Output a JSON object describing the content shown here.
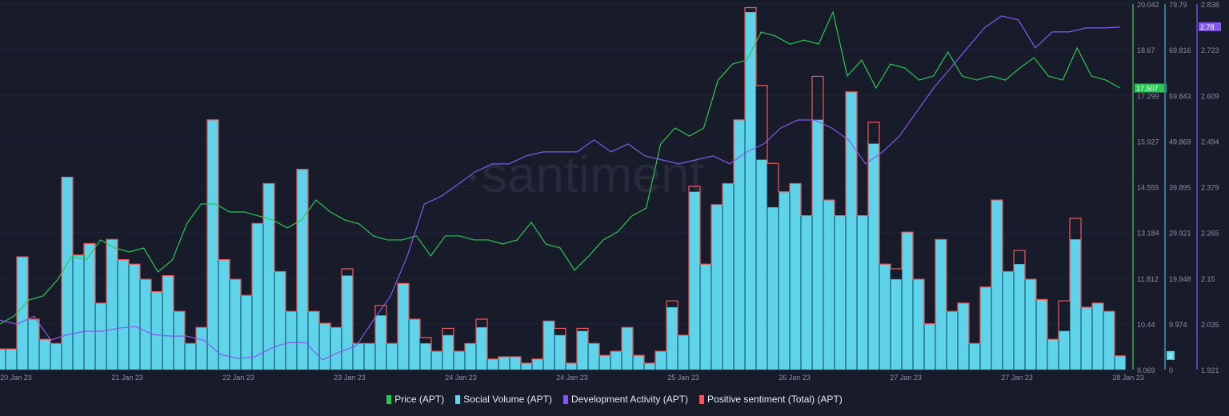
{
  "watermark": "·santiment",
  "chart_data": {
    "type": "line",
    "x_tick_labels": [
      "20 Jan 23",
      "21 Jan 23",
      "22 Jan 23",
      "23 Jan 23",
      "24 Jan 23",
      "24 Jan 23",
      "25 Jan 23",
      "26 Jan 23",
      "27 Jan 23",
      "27 Jan 23",
      "28 Jan 23"
    ],
    "grid": true,
    "legend_position": "bottom",
    "axes": {
      "price": {
        "ticks": [
          "20.042",
          "18.67",
          "17.299",
          "15.927",
          "14.555",
          "13.184",
          "11.812",
          "10.44",
          "9.069"
        ],
        "range": [
          9.069,
          20.042
        ],
        "badge": "17.507"
      },
      "social_volume": {
        "ticks": [
          "79.79",
          "69.816",
          "59.843",
          "49.869",
          "39.895",
          "29.921",
          "19.948",
          "9.974",
          "0"
        ],
        "range": [
          0,
          79.79
        ],
        "badge": "3"
      },
      "dev_activity": {
        "ticks": [
          "2.838",
          "2.723",
          "2.609",
          "2.494",
          "2.379",
          "2.265",
          "2.15",
          "2.035",
          "1.921"
        ],
        "range": [
          1.921,
          2.838
        ],
        "badge": "2.78"
      }
    },
    "series": [
      {
        "name": "Price (APT)",
        "color": "#26c953",
        "type": "line",
        "axis": "price",
        "values": [
          10.44,
          10.68,
          11.16,
          11.28,
          11.76,
          12.48,
          12.36,
          12.96,
          12.72,
          12.6,
          12.72,
          12.0,
          12.36,
          13.44,
          14.04,
          14.04,
          13.8,
          13.8,
          13.68,
          13.56,
          13.32,
          13.56,
          14.16,
          13.8,
          13.56,
          13.44,
          13.08,
          12.96,
          12.96,
          13.08,
          12.48,
          13.08,
          13.08,
          12.96,
          12.96,
          12.84,
          12.96,
          13.49,
          12.84,
          12.72,
          12.05,
          12.48,
          12.96,
          13.2,
          13.68,
          13.92,
          15.84,
          16.32,
          16.08,
          16.32,
          17.76,
          18.24,
          18.36,
          19.2,
          19.08,
          18.84,
          18.96,
          18.84,
          19.8,
          17.88,
          18.36,
          17.52,
          18.24,
          18.12,
          17.76,
          17.88,
          18.6,
          17.88,
          17.76,
          17.88,
          17.76,
          18.12,
          18.43,
          17.88,
          17.76,
          18.72,
          17.88,
          17.76,
          17.52
        ]
      },
      {
        "name": "Social Volume (APT)",
        "color": "#5fd3ea",
        "type": "bar",
        "axis": "social_volume",
        "values": [
          4.5,
          4.5,
          24.6,
          11,
          6.6,
          5.7,
          42,
          25,
          27.5,
          14.5,
          28.4,
          24,
          23,
          19.7,
          17,
          20.5,
          12.7,
          5.7,
          9.2,
          54.5,
          24,
          19.7,
          16.2,
          31.9,
          40.6,
          21.4,
          12.7,
          43.7,
          12.7,
          10.1,
          9.2,
          20.5,
          5.7,
          5.7,
          11.8,
          5.7,
          18.8,
          11,
          5.7,
          4,
          7.5,
          4,
          5.7,
          9.2,
          2.3,
          2.8,
          2.8,
          1.4,
          2.3,
          10.6,
          7.5,
          1.4,
          8.4,
          5.7,
          3.1,
          4,
          9.2,
          3.1,
          1.4,
          4,
          13.6,
          7.5,
          38.8,
          23,
          36,
          40.6,
          54.5,
          78,
          45.8,
          35.4,
          38.8,
          40.6,
          33.6,
          54.5,
          37,
          33.6,
          60.6,
          33.6,
          49.3,
          23,
          19.7,
          30,
          19.7,
          10,
          28.4,
          12.7,
          14.5,
          5.7,
          18,
          37,
          21.4,
          23,
          19.7,
          15.3,
          6.6,
          8.4,
          28.4,
          13.6,
          14.5,
          12.7,
          3
        ]
      },
      {
        "name": "Development Activity (APT)",
        "color": "#8159f0",
        "type": "line",
        "axis": "dev_activity",
        "values": [
          2.045,
          2.035,
          2.055,
          1.995,
          2.009,
          2.017,
          2.017,
          2.025,
          2.029,
          2.009,
          2.005,
          2.005,
          1.995,
          1.959,
          1.949,
          1.953,
          1.975,
          1.989,
          1.989,
          1.945,
          1.965,
          1.981,
          2.045,
          2.105,
          2.206,
          2.336,
          2.356,
          2.386,
          2.417,
          2.437,
          2.437,
          2.457,
          2.467,
          2.467,
          2.467,
          2.497,
          2.467,
          2.487,
          2.457,
          2.447,
          2.437,
          2.447,
          2.457,
          2.437,
          2.467,
          2.487,
          2.527,
          2.547,
          2.547,
          2.527,
          2.497,
          2.437,
          2.467,
          2.507,
          2.567,
          2.627,
          2.677,
          2.728,
          2.778,
          2.808,
          2.798,
          2.728,
          2.768,
          2.768,
          2.778,
          2.778,
          2.78
        ]
      },
      {
        "name": "Positive sentiment (Total) (APT)",
        "color": "#f05a5a",
        "type": "step",
        "axis": "social_volume",
        "values": [
          4.5,
          4.5,
          24.6,
          11,
          6.6,
          5.7,
          42,
          25,
          27.5,
          14.5,
          28.4,
          24,
          23,
          19.7,
          17,
          20.5,
          12.7,
          5.7,
          9.2,
          54.5,
          24,
          19.7,
          16.2,
          31.9,
          40.6,
          21.4,
          12.7,
          43.7,
          12.7,
          10.1,
          9.2,
          22,
          5.7,
          5.7,
          14,
          5.7,
          18.8,
          11,
          7,
          4,
          9,
          4,
          5.7,
          11,
          2.3,
          2.8,
          2.8,
          1.4,
          2.3,
          10.6,
          9,
          1.4,
          9,
          5.7,
          3.1,
          4,
          9.2,
          3.1,
          1.4,
          4,
          15,
          7.5,
          40,
          23,
          36,
          40.6,
          54.5,
          79,
          62,
          45,
          38.8,
          40.6,
          33.6,
          64,
          37,
          33.6,
          60.6,
          33.6,
          54,
          23,
          22,
          30,
          19.7,
          10,
          28.4,
          12.7,
          14.5,
          5.7,
          18,
          37,
          21.4,
          26,
          19.7,
          15.3,
          6.6,
          15,
          33,
          13.6,
          14.5,
          12.7,
          3
        ]
      }
    ]
  }
}
